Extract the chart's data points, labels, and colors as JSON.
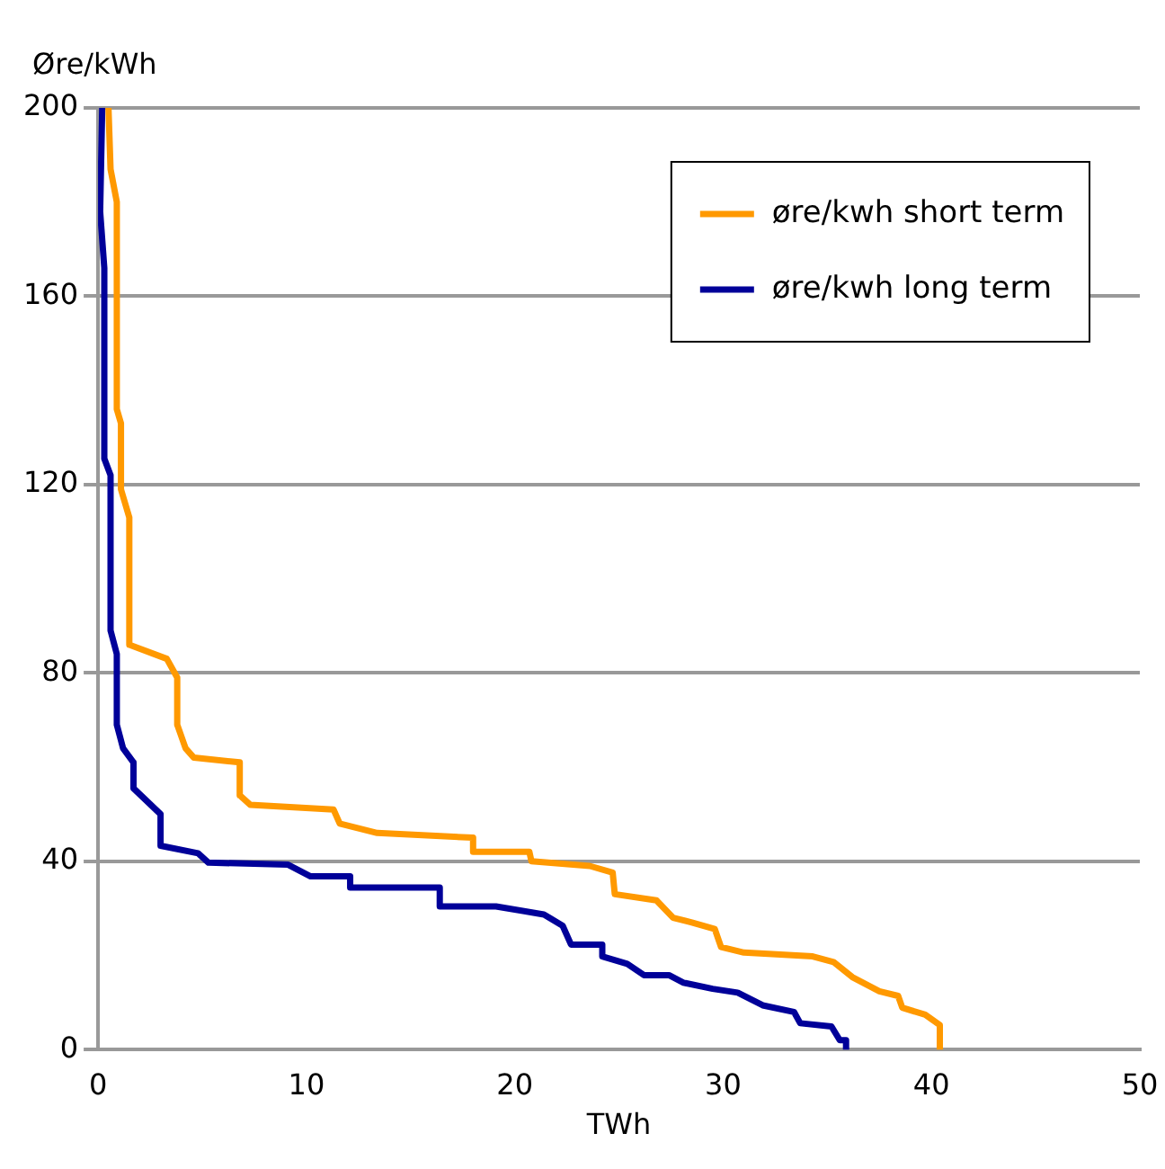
{
  "chart_data": {
    "type": "line",
    "ylabel": "Øre/kWh",
    "xlabel": "TWh",
    "xlim": [
      0,
      50
    ],
    "xticks": [
      0,
      10,
      20,
      30,
      40,
      50
    ],
    "ylim": [
      0,
      200
    ],
    "yticks": [
      0,
      40,
      80,
      120,
      160,
      200
    ],
    "grid": "y",
    "legend": "top right",
    "marker": "none",
    "line_style": "solid",
    "series": [
      {
        "name": "øre/kwh short term",
        "color": "#ff9900",
        "x": [
          0.5,
          0.6,
          0.9,
          0.9,
          1.1,
          1.1,
          1.5,
          1.5,
          3.3,
          3.8,
          3.8,
          4.2,
          4.6,
          6.8,
          6.8,
          7.3,
          11.3,
          11.6,
          13.4,
          18,
          18,
          20.7,
          20.8,
          23.6,
          24.7,
          24.8,
          26.8,
          27.6,
          28.5,
          29.6,
          29.9,
          31,
          34.3,
          35.3,
          36.2,
          37.5,
          38.4,
          38.6,
          39.7,
          40.4,
          40.4
        ],
        "values": [
          200,
          187,
          180,
          136,
          133,
          119,
          113,
          86,
          83,
          79,
          69,
          64,
          62,
          61,
          54,
          52,
          51,
          48,
          46,
          45,
          42,
          42,
          40,
          39,
          37.6,
          33,
          31.7,
          28,
          27,
          25.6,
          21.8,
          20.6,
          19.8,
          18.6,
          15.4,
          12.4,
          11.4,
          8.9,
          7.4,
          5.2,
          0
        ]
      },
      {
        "name": "øre/kwh long term",
        "color": "#000099",
        "x": [
          0.2,
          0.1,
          0.3,
          0.3,
          0.6,
          0.6,
          0.9,
          0.9,
          1.2,
          1.7,
          1.7,
          3,
          3,
          4.8,
          5.3,
          9.1,
          10.2,
          12.1,
          12.1,
          16.4,
          16.4,
          19.1,
          21.4,
          22.3,
          22.7,
          24.2,
          24.2,
          25.4,
          26.2,
          27.4,
          28.1,
          29.5,
          30.7,
          31.9,
          33.4,
          33.7,
          35.2,
          35.6,
          35.9,
          35.9
        ],
        "values": [
          200,
          178,
          166,
          125.5,
          122,
          89,
          84,
          69,
          64,
          61,
          55.5,
          50,
          43.3,
          41.7,
          39.7,
          39.3,
          36.8,
          36.8,
          34.4,
          34.4,
          30.4,
          30.4,
          28.7,
          26.3,
          22.3,
          22.3,
          19.8,
          18.2,
          15.8,
          15.8,
          14.2,
          12.9,
          12.1,
          9.4,
          8,
          5.6,
          4.9,
          2,
          2,
          0
        ]
      }
    ]
  }
}
